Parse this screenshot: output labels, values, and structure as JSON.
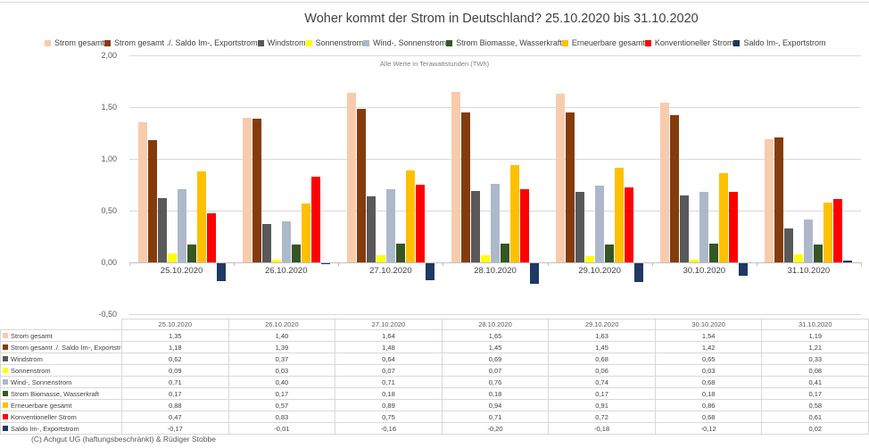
{
  "title": "Woher kommt der Strom in Deutschland? 25.10.2020 bis 31.10.2020",
  "subtitle": "Alle Werte in Terawattstunden (TWh)",
  "footer": "(C) Achgut UG (haftungsbeschränkt) & Rüdiger Stobbe",
  "chart_data": {
    "type": "bar",
    "unit": "TWh",
    "categories": [
      "25.10.2020",
      "26.10.2020",
      "27.10.2020",
      "28.10.2020",
      "29.10.2020",
      "30.10.2020",
      "31.10.2020"
    ],
    "series": [
      {
        "name": "Strom gesamt",
        "color": "#F8CBAD",
        "values": [
          1.35,
          1.4,
          1.64,
          1.65,
          1.63,
          1.54,
          1.19
        ]
      },
      {
        "name": "Strom gesamt ./. Saldo Im-, Exportstrom",
        "color": "#843C0C",
        "values": [
          1.18,
          1.39,
          1.48,
          1.45,
          1.45,
          1.42,
          1.21
        ]
      },
      {
        "name": "Windstrom",
        "color": "#595959",
        "values": [
          0.62,
          0.37,
          0.64,
          0.69,
          0.68,
          0.65,
          0.33
        ]
      },
      {
        "name": "Sonnenstrom",
        "color": "#FFFF00",
        "values": [
          0.09,
          0.03,
          0.07,
          0.07,
          0.06,
          0.03,
          0.08
        ]
      },
      {
        "name": "Wind-, Sonnenstrom",
        "color": "#ADB9CA",
        "values": [
          0.71,
          0.4,
          0.71,
          0.76,
          0.74,
          0.68,
          0.41
        ]
      },
      {
        "name": "Strom Biomasse, Wasserkraft",
        "color": "#375623",
        "values": [
          0.17,
          0.17,
          0.18,
          0.18,
          0.17,
          0.18,
          0.17
        ]
      },
      {
        "name": "Erneuerbare gesamt",
        "color": "#FFC000",
        "values": [
          0.88,
          0.57,
          0.89,
          0.94,
          0.91,
          0.86,
          0.58
        ]
      },
      {
        "name": "Konventioneller Strom",
        "color": "#FF0000",
        "values": [
          0.47,
          0.83,
          0.75,
          0.71,
          0.72,
          0.68,
          0.61
        ]
      },
      {
        "name": "Saldo Im-, Exportstrom",
        "color": "#1F3864",
        "values": [
          -0.17,
          -0.01,
          -0.16,
          -0.2,
          -0.18,
          -0.12,
          0.02
        ]
      }
    ],
    "ylim": [
      -0.5,
      2.0
    ],
    "yticks": [
      "2,00",
      "1,50",
      "1,00",
      "0,50",
      "0,00",
      "-0,50"
    ],
    "ytick_values": [
      2.0,
      1.5,
      1.0,
      0.5,
      0.0,
      -0.5
    ],
    "grid": true,
    "legend_position": "top",
    "value_format": "german-comma-2dp"
  }
}
